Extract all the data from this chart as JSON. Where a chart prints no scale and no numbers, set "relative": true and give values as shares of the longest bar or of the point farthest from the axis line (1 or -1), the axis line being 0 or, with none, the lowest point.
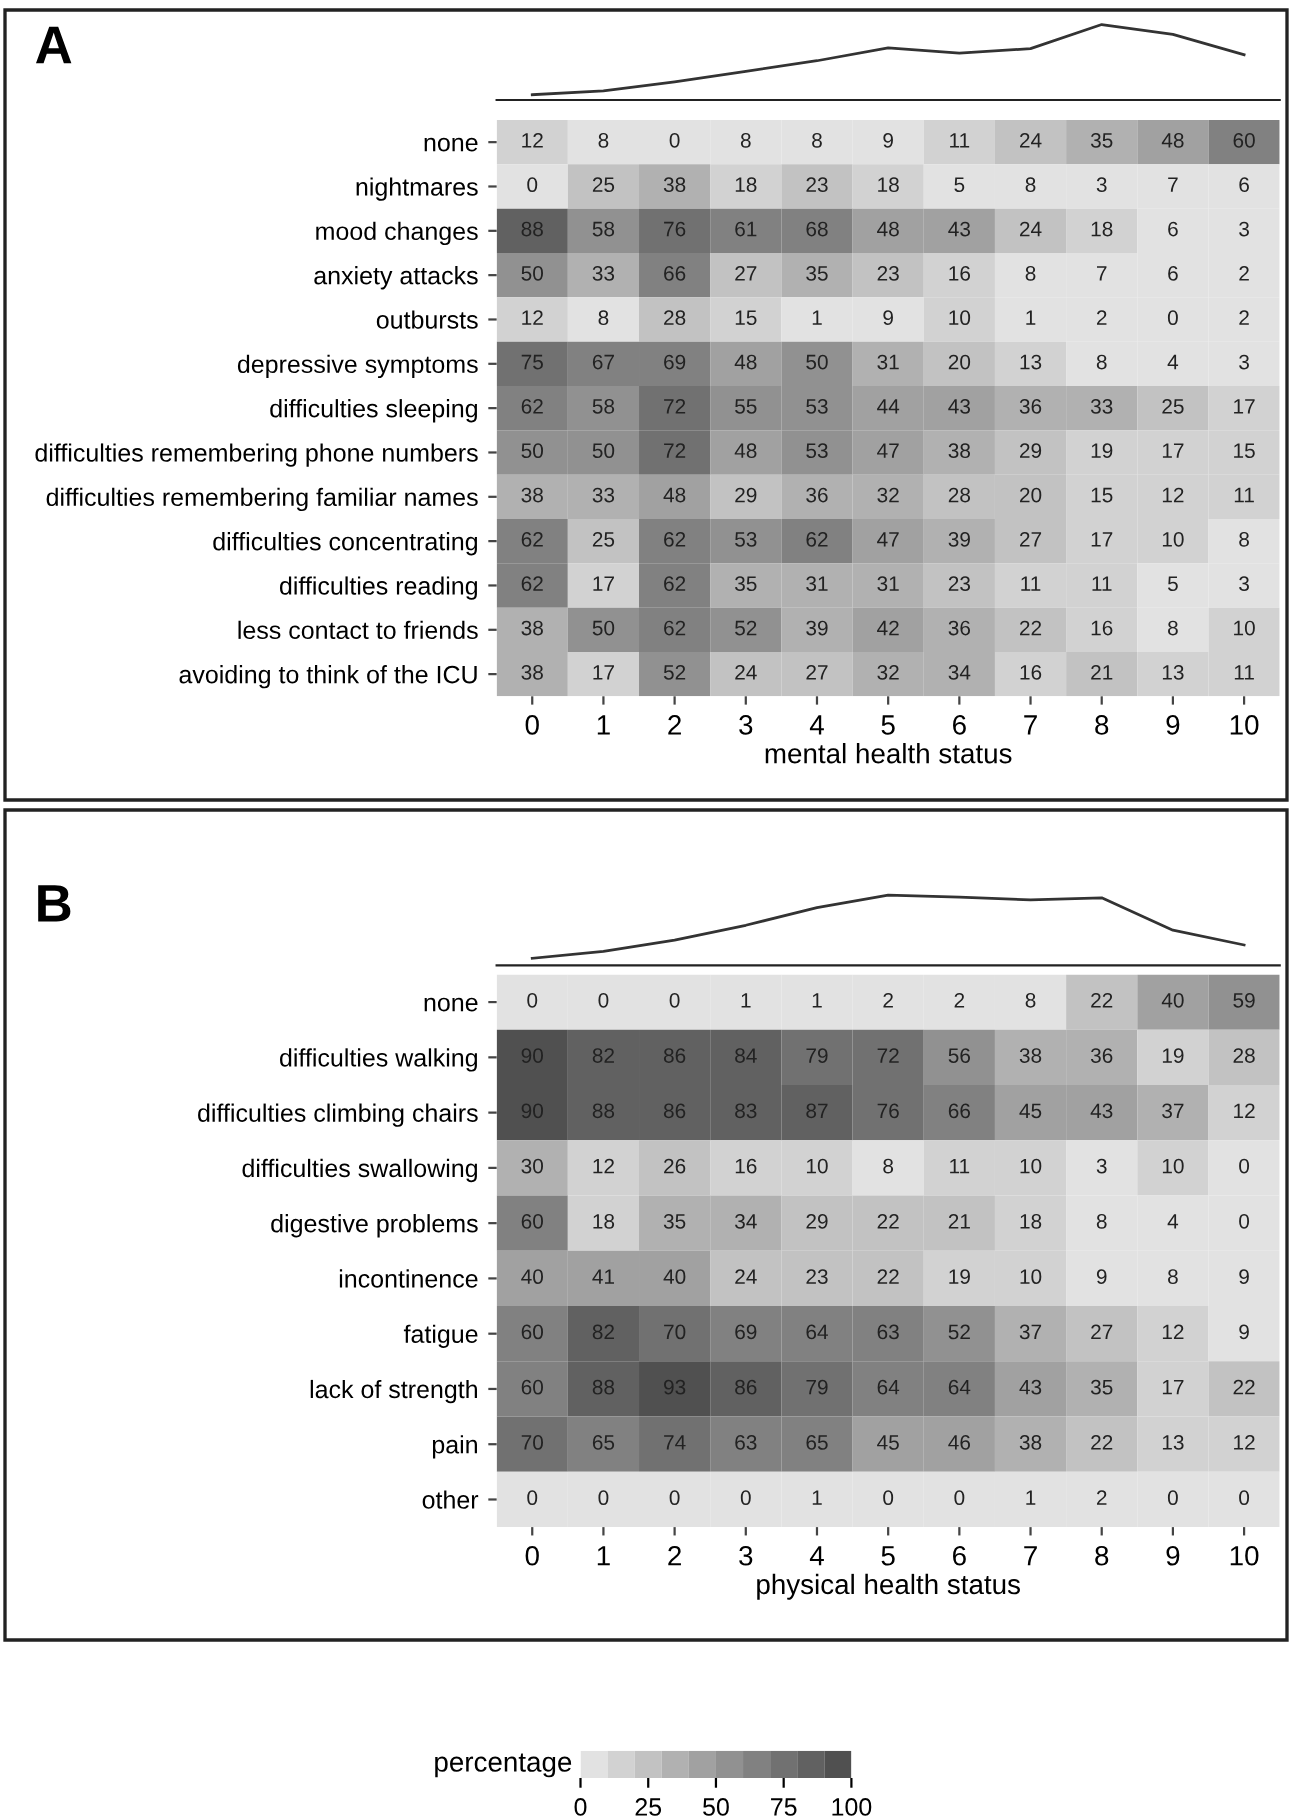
{
  "chart_data": [
    {
      "type": "line",
      "relative": true,
      "categories": [
        null,
        null,
        null,
        null,
        null,
        null,
        null,
        null,
        null,
        null,
        null
      ],
      "series": [
        {
          "color": "#333333",
          "values": [
            0.07,
            0.12,
            0.24,
            0.38,
            0.52,
            0.69,
            0.62,
            0.68,
            1.0,
            0.87,
            0.6
          ]
        }
      ]
    },
    {
      "type": "heatmap",
      "title": "A",
      "xlabel": "mental health status",
      "categories": [
        "0",
        "1",
        "2",
        "3",
        "4",
        "5",
        "6",
        "7",
        "8",
        "9",
        "10"
      ],
      "y_categories": [
        "none",
        "nightmares",
        "mood changes",
        "anxiety attacks",
        "outbursts",
        "depressive symptoms",
        "difficulties sleeping",
        "difficulties remembering phone numbers",
        "difficulties remembering familiar names",
        "difficulties concentrating",
        "difficulties reading",
        "less contact to friends",
        "avoiding to think of the ICU"
      ],
      "cells": [
        [
          12,
          8,
          0,
          8,
          8,
          9,
          11,
          24,
          35,
          48,
          60
        ],
        [
          0,
          25,
          38,
          18,
          23,
          18,
          5,
          8,
          3,
          7,
          6
        ],
        [
          88,
          58,
          76,
          61,
          68,
          48,
          43,
          24,
          18,
          6,
          3
        ],
        [
          50,
          33,
          66,
          27,
          35,
          23,
          16,
          8,
          7,
          6,
          2
        ],
        [
          12,
          8,
          28,
          15,
          1,
          9,
          10,
          1,
          2,
          0,
          2
        ],
        [
          75,
          67,
          69,
          48,
          50,
          31,
          20,
          13,
          8,
          4,
          3
        ],
        [
          62,
          58,
          72,
          55,
          53,
          44,
          43,
          36,
          33,
          25,
          17
        ],
        [
          50,
          50,
          72,
          48,
          53,
          47,
          38,
          29,
          19,
          17,
          15
        ],
        [
          38,
          33,
          48,
          29,
          36,
          32,
          28,
          20,
          15,
          12,
          11
        ],
        [
          62,
          25,
          62,
          53,
          62,
          47,
          39,
          27,
          17,
          10,
          8
        ],
        [
          62,
          17,
          62,
          35,
          31,
          31,
          23,
          11,
          11,
          5,
          3
        ],
        [
          38,
          50,
          62,
          52,
          39,
          42,
          36,
          22,
          16,
          8,
          10
        ],
        [
          38,
          17,
          52,
          24,
          27,
          32,
          34,
          16,
          21,
          13,
          11
        ]
      ],
      "data_labels": true
    },
    {
      "type": "line",
      "relative": true,
      "categories": [
        null,
        null,
        null,
        null,
        null,
        null,
        null,
        null,
        null,
        null,
        null
      ],
      "series": [
        {
          "color": "#333333",
          "values": [
            0.1,
            0.2,
            0.36,
            0.57,
            0.82,
            1.0,
            0.97,
            0.93,
            0.96,
            0.5,
            0.29
          ]
        }
      ]
    },
    {
      "type": "heatmap",
      "title": "B",
      "xlabel": "physical health status",
      "categories": [
        "0",
        "1",
        "2",
        "3",
        "4",
        "5",
        "6",
        "7",
        "8",
        "9",
        "10"
      ],
      "y_categories": [
        "none",
        "difficulties walking",
        "difficulties climbing chairs",
        "difficulties swallowing",
        "digestive problems",
        "incontinence",
        "fatigue",
        "lack of strength",
        "pain",
        "other"
      ],
      "cells": [
        [
          0,
          0,
          0,
          1,
          1,
          2,
          2,
          8,
          22,
          40,
          59
        ],
        [
          90,
          82,
          86,
          84,
          79,
          72,
          56,
          38,
          36,
          19,
          28
        ],
        [
          90,
          88,
          86,
          83,
          87,
          76,
          66,
          45,
          43,
          37,
          12
        ],
        [
          30,
          12,
          26,
          16,
          10,
          8,
          11,
          10,
          3,
          10,
          0
        ],
        [
          60,
          18,
          35,
          34,
          29,
          22,
          21,
          18,
          8,
          4,
          0
        ],
        [
          40,
          41,
          40,
          24,
          23,
          22,
          19,
          10,
          9,
          8,
          9
        ],
        [
          60,
          82,
          70,
          69,
          64,
          63,
          52,
          37,
          27,
          12,
          9
        ],
        [
          60,
          88,
          93,
          86,
          79,
          64,
          64,
          43,
          35,
          17,
          22
        ],
        [
          70,
          65,
          74,
          63,
          65,
          45,
          46,
          38,
          22,
          13,
          12
        ],
        [
          0,
          0,
          0,
          0,
          1,
          0,
          0,
          1,
          2,
          0,
          0
        ]
      ],
      "clim": [
        0,
        100
      ],
      "cticks": [
        0,
        25,
        50,
        75,
        100
      ],
      "clabel": "percentage",
      "data_labels": true
    }
  ]
}
